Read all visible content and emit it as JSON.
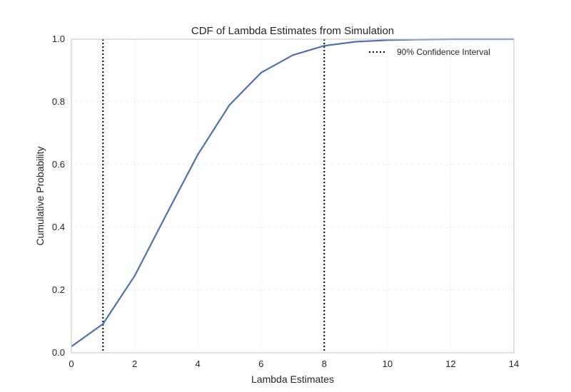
{
  "chart_data": {
    "type": "line",
    "title": "CDF of Lambda Estimates from Simulation",
    "xlabel": "Lambda Estimates",
    "ylabel": "Cumulative Probability",
    "xlim": [
      0,
      14
    ],
    "ylim": [
      0.0,
      1.0
    ],
    "xticks": [
      0,
      2,
      4,
      6,
      8,
      10,
      12,
      14
    ],
    "xtick_labels": [
      "0",
      "2",
      "4",
      "6",
      "8",
      "10",
      "12",
      "14"
    ],
    "yticks": [
      0.0,
      0.2,
      0.4,
      0.6,
      0.8,
      1.0
    ],
    "ytick_labels": [
      "0.0",
      "0.2",
      "0.4",
      "0.6",
      "0.8",
      "1.0"
    ],
    "grid": true,
    "legend_position": "top-right",
    "series": [
      {
        "x": [
          0,
          1,
          2,
          3,
          4,
          5,
          6,
          7,
          8,
          9,
          10,
          11,
          12,
          13,
          14
        ],
        "y": [
          0.02,
          0.092,
          0.245,
          0.44,
          0.632,
          0.79,
          0.893,
          0.949,
          0.979,
          0.992,
          0.997,
          0.999,
          1.0,
          1.0,
          1.0
        ],
        "color": "#4c72b0"
      }
    ],
    "vlines": [
      {
        "name": "90% Confidence Interval",
        "x": 1,
        "style": "dotted",
        "color": "#000000"
      },
      {
        "name": "90% Confidence Interval",
        "x": 8,
        "style": "dotted",
        "color": "#000000"
      }
    ],
    "legend": [
      "90% Confidence Interval"
    ]
  }
}
